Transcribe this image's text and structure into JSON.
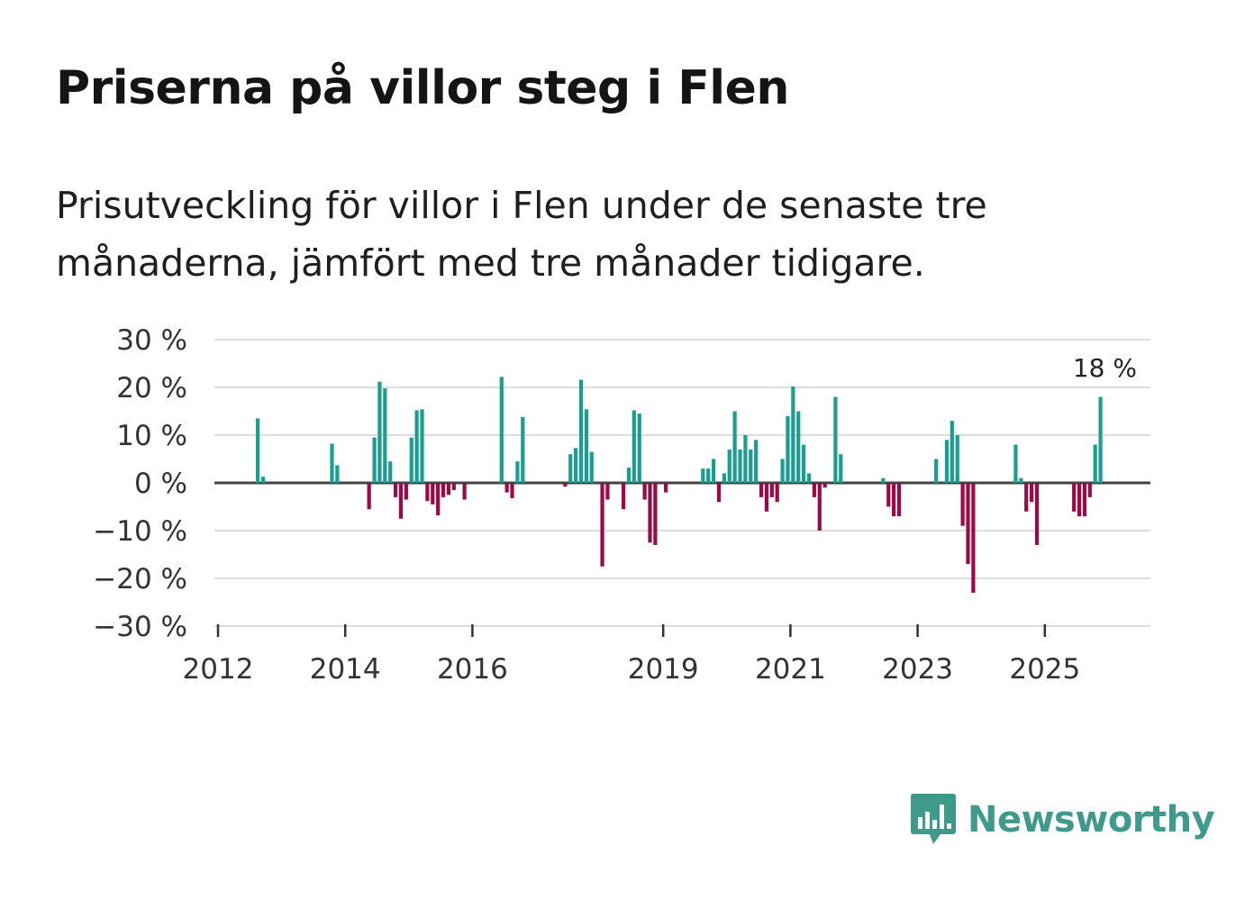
{
  "title": "Priserna på villor steg i Flen",
  "subtitle": "Prisutveckling för villor i Flen under de senaste tre månaderna, jämfört med tre månader tidigare.",
  "logo": {
    "text": "Newsworthy",
    "icon": "bar-chart-speech-bubble-icon",
    "color": "#3f9a8c"
  },
  "colors": {
    "positive": "#1a9e8f",
    "negative": "#9c0a45",
    "grid": "#dddddd",
    "zero": "#444444"
  },
  "chart_data": {
    "type": "bar",
    "title": "Priserna på villor steg i Flen",
    "unit": "%",
    "ylim": [
      -30,
      30
    ],
    "yticks": [
      30,
      20,
      10,
      0,
      -10,
      -20,
      -30
    ],
    "ytick_labels": [
      "30 %",
      "20 %",
      "10 %",
      "0 %",
      "−10 %",
      "−20 %",
      "−30 %"
    ],
    "xlim": [
      "2012-01",
      "2026-08"
    ],
    "xticks": [
      "2012",
      "2014",
      "2016",
      "2019",
      "2021",
      "2023",
      "2025"
    ],
    "last_value_label": "18 %",
    "series": [
      {
        "name": "Prisutveckling",
        "points": [
          {
            "date": "2012-08",
            "value": 13.5
          },
          {
            "date": "2012-09",
            "value": 1.3
          },
          {
            "date": "2013-10",
            "value": 8.2
          },
          {
            "date": "2013-11",
            "value": 3.7
          },
          {
            "date": "2014-05",
            "value": -5.5
          },
          {
            "date": "2014-06",
            "value": 9.5
          },
          {
            "date": "2014-07",
            "value": 21.2
          },
          {
            "date": "2014-08",
            "value": 19.8
          },
          {
            "date": "2014-09",
            "value": 4.5
          },
          {
            "date": "2014-10",
            "value": -3.0
          },
          {
            "date": "2014-11",
            "value": -7.5
          },
          {
            "date": "2014-12",
            "value": -3.5
          },
          {
            "date": "2015-01",
            "value": 9.5
          },
          {
            "date": "2015-02",
            "value": 15.2
          },
          {
            "date": "2015-03",
            "value": 15.4
          },
          {
            "date": "2015-04",
            "value": -3.8
          },
          {
            "date": "2015-05",
            "value": -4.5
          },
          {
            "date": "2015-06",
            "value": -6.8
          },
          {
            "date": "2015-07",
            "value": -3.0
          },
          {
            "date": "2015-08",
            "value": -2.5
          },
          {
            "date": "2015-09",
            "value": -1.5
          },
          {
            "date": "2015-11",
            "value": -3.5
          },
          {
            "date": "2016-06",
            "value": 22.2
          },
          {
            "date": "2016-07",
            "value": -2.0
          },
          {
            "date": "2016-08",
            "value": -3.2
          },
          {
            "date": "2016-09",
            "value": 4.5
          },
          {
            "date": "2016-10",
            "value": 13.8
          },
          {
            "date": "2017-06",
            "value": -0.8
          },
          {
            "date": "2017-07",
            "value": 6.0
          },
          {
            "date": "2017-08",
            "value": 7.3
          },
          {
            "date": "2017-09",
            "value": 21.6
          },
          {
            "date": "2017-10",
            "value": 15.4
          },
          {
            "date": "2017-11",
            "value": 6.5
          },
          {
            "date": "2018-01",
            "value": -17.5
          },
          {
            "date": "2018-02",
            "value": -3.5
          },
          {
            "date": "2018-05",
            "value": -5.5
          },
          {
            "date": "2018-06",
            "value": 3.2
          },
          {
            "date": "2018-07",
            "value": 15.2
          },
          {
            "date": "2018-08",
            "value": 14.5
          },
          {
            "date": "2018-09",
            "value": -3.5
          },
          {
            "date": "2018-10",
            "value": -12.5
          },
          {
            "date": "2018-11",
            "value": -13.0
          },
          {
            "date": "2019-01",
            "value": -2.0
          },
          {
            "date": "2019-08",
            "value": 3.0
          },
          {
            "date": "2019-09",
            "value": 3.0
          },
          {
            "date": "2019-10",
            "value": 5.0
          },
          {
            "date": "2019-11",
            "value": -4.0
          },
          {
            "date": "2019-12",
            "value": 2.0
          },
          {
            "date": "2020-01",
            "value": 7.0
          },
          {
            "date": "2020-02",
            "value": 15.0
          },
          {
            "date": "2020-03",
            "value": 7.0
          },
          {
            "date": "2020-04",
            "value": 10.0
          },
          {
            "date": "2020-05",
            "value": 7.0
          },
          {
            "date": "2020-06",
            "value": 9.0
          },
          {
            "date": "2020-07",
            "value": -3.0
          },
          {
            "date": "2020-08",
            "value": -6.0
          },
          {
            "date": "2020-09",
            "value": -3.0
          },
          {
            "date": "2020-10",
            "value": -4.0
          },
          {
            "date": "2020-11",
            "value": 5.0
          },
          {
            "date": "2020-12",
            "value": 14.0
          },
          {
            "date": "2021-01",
            "value": 20.2
          },
          {
            "date": "2021-02",
            "value": 15.0
          },
          {
            "date": "2021-03",
            "value": 8.0
          },
          {
            "date": "2021-04",
            "value": 2.0
          },
          {
            "date": "2021-05",
            "value": -3.0
          },
          {
            "date": "2021-06",
            "value": -10.0
          },
          {
            "date": "2021-07",
            "value": -1.0
          },
          {
            "date": "2021-09",
            "value": 18.0
          },
          {
            "date": "2021-10",
            "value": 6.0
          },
          {
            "date": "2022-06",
            "value": 1.0
          },
          {
            "date": "2022-07",
            "value": -5.0
          },
          {
            "date": "2022-08",
            "value": -7.0
          },
          {
            "date": "2022-09",
            "value": -7.0
          },
          {
            "date": "2023-04",
            "value": 5.0
          },
          {
            "date": "2023-06",
            "value": 9.0
          },
          {
            "date": "2023-07",
            "value": 13.0
          },
          {
            "date": "2023-08",
            "value": 10.0
          },
          {
            "date": "2023-09",
            "value": -9.0
          },
          {
            "date": "2023-10",
            "value": -17.0
          },
          {
            "date": "2023-11",
            "value": -23.0
          },
          {
            "date": "2024-07",
            "value": 8.0
          },
          {
            "date": "2024-08",
            "value": 1.0
          },
          {
            "date": "2024-09",
            "value": -6.0
          },
          {
            "date": "2024-10",
            "value": -4.0
          },
          {
            "date": "2024-11",
            "value": -13.0
          },
          {
            "date": "2025-06",
            "value": -6.0
          },
          {
            "date": "2025-07",
            "value": -7.0
          },
          {
            "date": "2025-08",
            "value": -7.0
          },
          {
            "date": "2025-09",
            "value": -3.0
          },
          {
            "date": "2025-10",
            "value": 8.0
          },
          {
            "date": "2025-11",
            "value": 18.0
          }
        ]
      }
    ]
  }
}
